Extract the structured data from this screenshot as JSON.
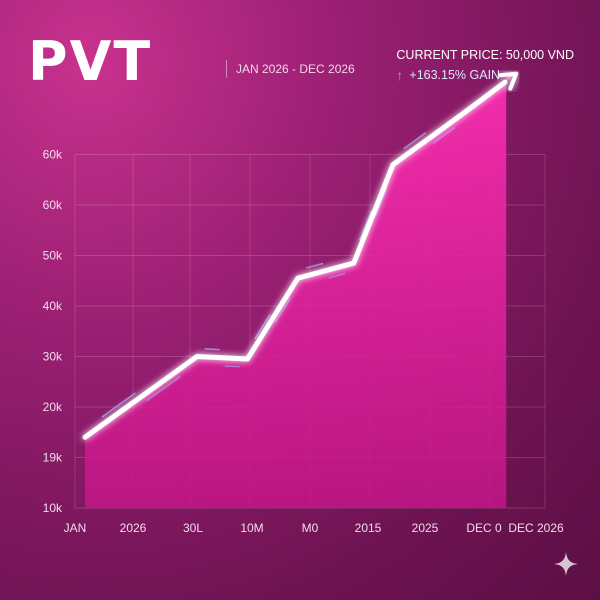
{
  "header": {
    "ticker": "PVT",
    "range": "JAN 2026 - DEC 2026",
    "price": "CURRENT PRICE: 50,000 VND",
    "gain": "+163.15% GAIN",
    "gain_icon": "arrow-up-icon"
  },
  "chart_data": {
    "type": "area",
    "title": "",
    "xlabel": "",
    "ylabel": "",
    "grid": true,
    "legend": "none",
    "line_color": "#ffffff",
    "fill_color": "#e21e9d",
    "y_tick_labels": [
      "10k",
      "19k",
      "20k",
      "30k",
      "40k",
      "50k",
      "60k",
      "60k"
    ],
    "x_tick_labels": [
      "JAN",
      "2026",
      "30L",
      "10M",
      "M0",
      "2015",
      "2025",
      "DEC 0",
      "DEC 2026"
    ],
    "series": [
      {
        "x": [
          0,
          2,
          2.9,
          3.8,
          4.8,
          5.5,
          6.8,
          7.7
        ],
        "y": [
          1.4,
          3.0,
          2.95,
          4.55,
          4.85,
          6.8,
          7.85,
          8.6
        ]
      }
    ]
  },
  "decor": {
    "sparkle_icon": "sparkle-icon"
  }
}
